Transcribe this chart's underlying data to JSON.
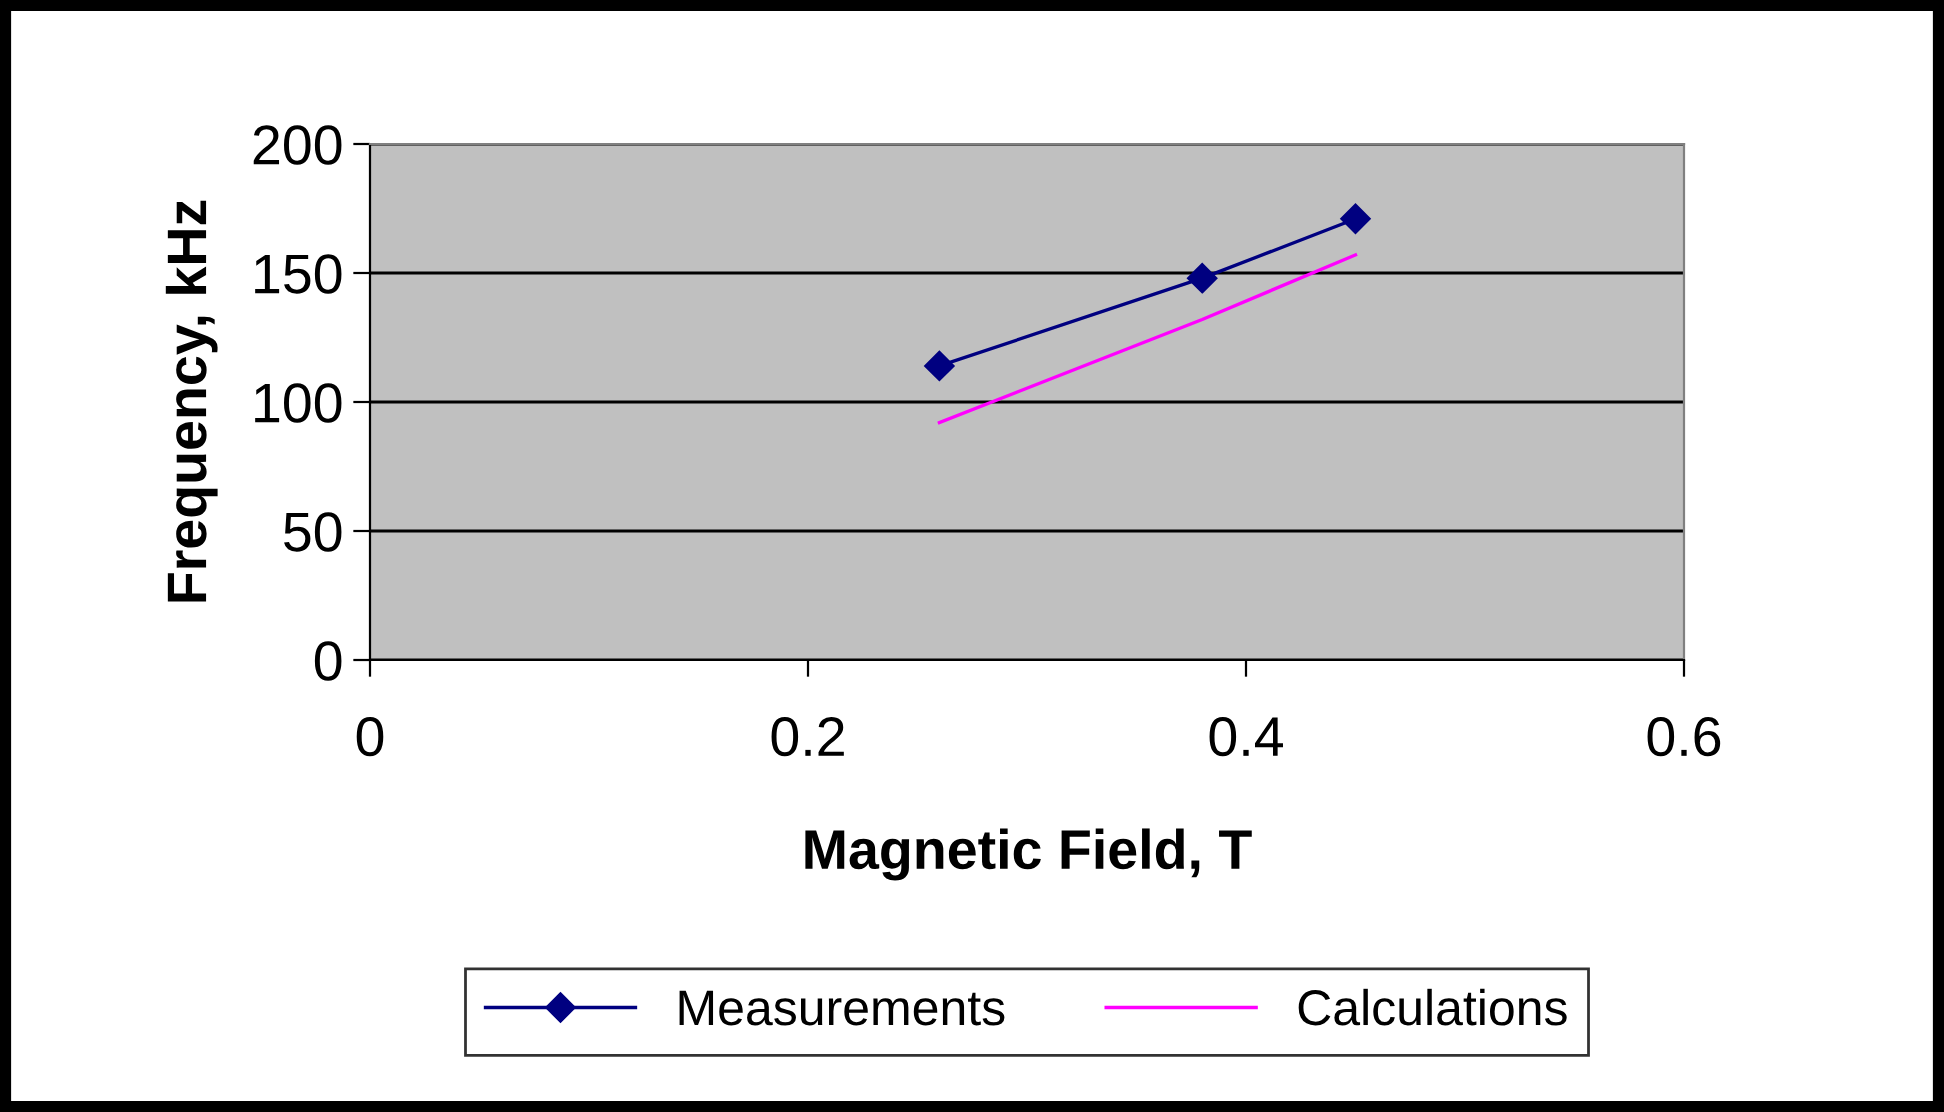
{
  "chart_data": {
    "type": "line",
    "xlabel": "Magnetic Field, T",
    "ylabel": "Frequency, kHz",
    "xlim": [
      0,
      0.6
    ],
    "xticks": [
      0,
      0.2,
      0.4,
      0.6
    ],
    "ylim": [
      0,
      200
    ],
    "yticks": [
      0,
      50,
      100,
      150,
      200
    ],
    "grid": "y",
    "legend": "bottom",
    "series": [
      {
        "name": "Measurements",
        "color": "#000080",
        "marker": "diamond",
        "x": [
          0.26,
          0.38,
          0.45
        ],
        "values": [
          114,
          148,
          171
        ]
      },
      {
        "name": "Calculations",
        "color": "#ff00ff",
        "marker": "none",
        "x": [
          0.26,
          0.38,
          0.45
        ],
        "values": [
          92,
          132,
          157
        ]
      }
    ]
  }
}
